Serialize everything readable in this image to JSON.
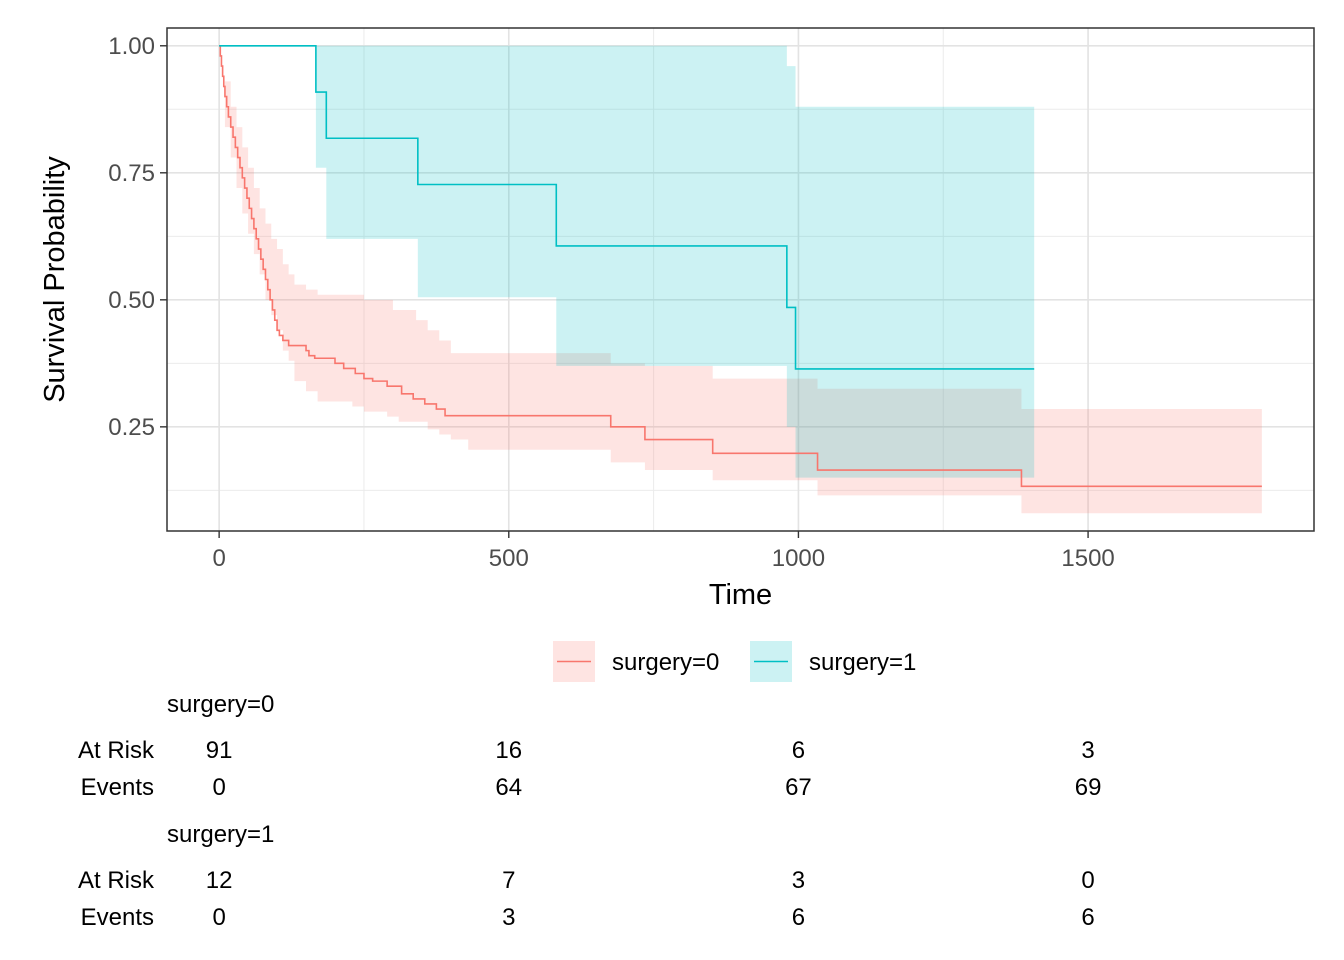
{
  "chart_data": {
    "type": "line",
    "subtype": "kaplan-meier-step",
    "title": "",
    "xlabel": "Time",
    "ylabel": "Survival Probability",
    "xlim": [
      -90,
      1890
    ],
    "ylim": [
      0.045,
      1.035
    ],
    "xticks": [
      0,
      500,
      1000,
      1500
    ],
    "xtick_labels": [
      "0",
      "500",
      "1000",
      "1500"
    ],
    "yticks": [
      0.25,
      0.5,
      0.75,
      1.0
    ],
    "ytick_labels": [
      "0.25",
      "0.50",
      "0.75",
      "1.00"
    ],
    "grid": true,
    "legend_position": "bottom",
    "series": [
      {
        "name": "surgery=0",
        "color": "#F8766D",
        "fill": "#FBD4D2",
        "steps": [
          [
            0,
            1.0
          ],
          [
            2,
            0.98
          ],
          [
            4,
            0.96
          ],
          [
            6,
            0.94
          ],
          [
            8,
            0.92
          ],
          [
            10,
            0.9
          ],
          [
            13,
            0.88
          ],
          [
            16,
            0.86
          ],
          [
            20,
            0.84
          ],
          [
            24,
            0.82
          ],
          [
            28,
            0.8
          ],
          [
            32,
            0.78
          ],
          [
            36,
            0.76
          ],
          [
            40,
            0.74
          ],
          [
            44,
            0.72
          ],
          [
            48,
            0.7
          ],
          [
            52,
            0.68
          ],
          [
            56,
            0.66
          ],
          [
            60,
            0.64
          ],
          [
            64,
            0.62
          ],
          [
            68,
            0.6
          ],
          [
            72,
            0.58
          ],
          [
            76,
            0.56
          ],
          [
            80,
            0.54
          ],
          [
            84,
            0.52
          ],
          [
            88,
            0.5
          ],
          [
            92,
            0.48
          ],
          [
            96,
            0.46
          ],
          [
            100,
            0.44
          ],
          [
            104,
            0.43
          ],
          [
            110,
            0.42
          ],
          [
            120,
            0.41
          ],
          [
            150,
            0.4
          ],
          [
            155,
            0.39
          ],
          [
            165,
            0.385
          ],
          [
            200,
            0.375
          ],
          [
            215,
            0.365
          ],
          [
            235,
            0.355
          ],
          [
            250,
            0.345
          ],
          [
            265,
            0.34
          ],
          [
            290,
            0.33
          ],
          [
            315,
            0.315
          ],
          [
            335,
            0.305
          ],
          [
            355,
            0.295
          ],
          [
            375,
            0.285
          ],
          [
            390,
            0.272
          ],
          [
            676,
            0.25
          ],
          [
            735,
            0.225
          ],
          [
            852,
            0.198
          ],
          [
            1033,
            0.165
          ],
          [
            1385,
            0.133
          ],
          [
            1800,
            0.133
          ]
        ],
        "ci_upper": [
          [
            0,
            1.0
          ],
          [
            10,
            0.93
          ],
          [
            20,
            0.88
          ],
          [
            30,
            0.84
          ],
          [
            40,
            0.8
          ],
          [
            50,
            0.76
          ],
          [
            60,
            0.72
          ],
          [
            70,
            0.68
          ],
          [
            80,
            0.65
          ],
          [
            90,
            0.62
          ],
          [
            100,
            0.6
          ],
          [
            110,
            0.57
          ],
          [
            120,
            0.55
          ],
          [
            130,
            0.53
          ],
          [
            150,
            0.52
          ],
          [
            170,
            0.51
          ],
          [
            250,
            0.5
          ],
          [
            300,
            0.48
          ],
          [
            340,
            0.46
          ],
          [
            360,
            0.44
          ],
          [
            380,
            0.42
          ],
          [
            400,
            0.395
          ],
          [
            676,
            0.375
          ],
          [
            735,
            0.37
          ],
          [
            852,
            0.345
          ],
          [
            1033,
            0.325
          ],
          [
            1385,
            0.285
          ],
          [
            1800,
            0.285
          ]
        ],
        "ci_lower": [
          [
            0,
            1.0
          ],
          [
            10,
            0.84
          ],
          [
            20,
            0.78
          ],
          [
            30,
            0.72
          ],
          [
            40,
            0.67
          ],
          [
            50,
            0.63
          ],
          [
            60,
            0.59
          ],
          [
            70,
            0.55
          ],
          [
            80,
            0.5
          ],
          [
            90,
            0.47
          ],
          [
            100,
            0.44
          ],
          [
            110,
            0.4
          ],
          [
            120,
            0.38
          ],
          [
            130,
            0.34
          ],
          [
            150,
            0.32
          ],
          [
            170,
            0.3
          ],
          [
            230,
            0.29
          ],
          [
            250,
            0.28
          ],
          [
            290,
            0.27
          ],
          [
            310,
            0.26
          ],
          [
            360,
            0.245
          ],
          [
            380,
            0.235
          ],
          [
            400,
            0.225
          ],
          [
            430,
            0.205
          ],
          [
            676,
            0.18
          ],
          [
            735,
            0.165
          ],
          [
            852,
            0.145
          ],
          [
            1033,
            0.115
          ],
          [
            1385,
            0.08
          ],
          [
            1800,
            0.08
          ]
        ]
      },
      {
        "name": "surgery=1",
        "color": "#00BFC4",
        "fill": "#C6EEF0",
        "steps": [
          [
            0,
            1.0
          ],
          [
            167,
            0.909
          ],
          [
            185,
            0.818
          ],
          [
            343,
            0.727
          ],
          [
            582,
            0.606
          ],
          [
            980,
            0.485
          ],
          [
            995,
            0.364
          ],
          [
            1407,
            0.364
          ]
        ],
        "ci_upper": [
          [
            0,
            1.0
          ],
          [
            980,
            0.96
          ],
          [
            995,
            0.88
          ],
          [
            1407,
            0.88
          ]
        ],
        "ci_lower": [
          [
            0,
            1.0
          ],
          [
            167,
            0.76
          ],
          [
            185,
            0.62
          ],
          [
            343,
            0.505
          ],
          [
            582,
            0.37
          ],
          [
            980,
            0.25
          ],
          [
            995,
            0.15
          ],
          [
            1407,
            0.15
          ]
        ]
      }
    ],
    "risk_table": {
      "times": [
        0,
        500,
        1000,
        1500
      ],
      "row_labels": [
        "At Risk",
        "Events"
      ],
      "strata": [
        {
          "name": "surgery=0",
          "at_risk": [
            "91",
            "16",
            "6",
            "3"
          ],
          "events": [
            "0",
            "64",
            "67",
            "69"
          ]
        },
        {
          "name": "surgery=1",
          "at_risk": [
            "12",
            "7",
            "3",
            "0"
          ],
          "events": [
            "0",
            "3",
            "6",
            "6"
          ]
        }
      ]
    }
  }
}
